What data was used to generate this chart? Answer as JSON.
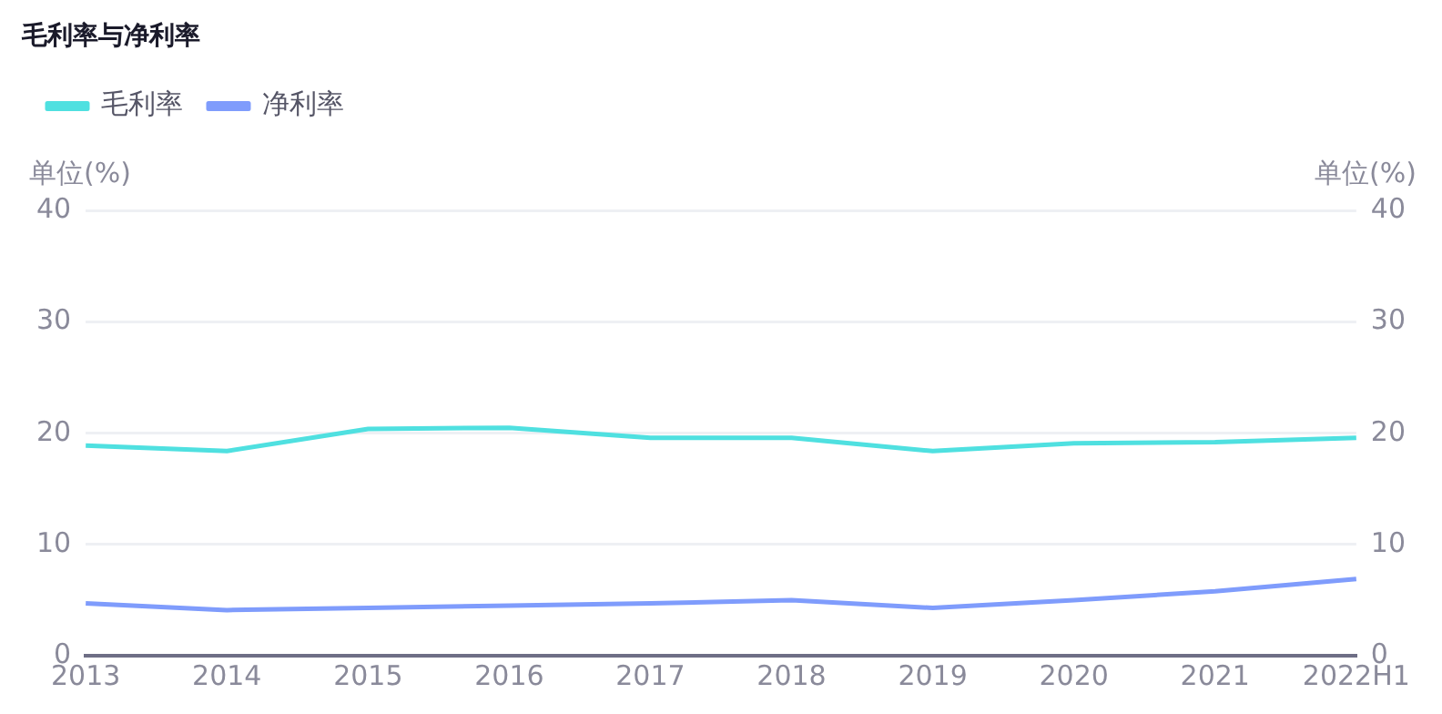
{
  "chart_data": {
    "type": "line",
    "title": "毛利率与净利率",
    "ylabel": "单位(%)",
    "y2label": "单位(%)",
    "categories": [
      "2013",
      "2014",
      "2015",
      "2016",
      "2017",
      "2018",
      "2019",
      "2020",
      "2021",
      "2022H1"
    ],
    "series": [
      {
        "name": "毛利率",
        "color": "#4fe0e0",
        "values": [
          18.9,
          18.4,
          20.4,
          20.5,
          19.6,
          19.6,
          18.4,
          19.1,
          19.2,
          19.6
        ]
      },
      {
        "name": "净利率",
        "color": "#7f9cfc",
        "values": [
          4.7,
          4.1,
          4.3,
          4.5,
          4.7,
          5.0,
          4.3,
          5.0,
          5.8,
          6.9
        ]
      }
    ],
    "ylim": [
      0,
      40
    ],
    "yticks": [
      0,
      10,
      20,
      30,
      40
    ],
    "y2lim": [
      0,
      40
    ],
    "y2ticks": [
      0,
      10,
      20,
      30,
      40
    ],
    "grid": "y",
    "legend": "top left",
    "marker": "none",
    "line_style": "solid"
  }
}
